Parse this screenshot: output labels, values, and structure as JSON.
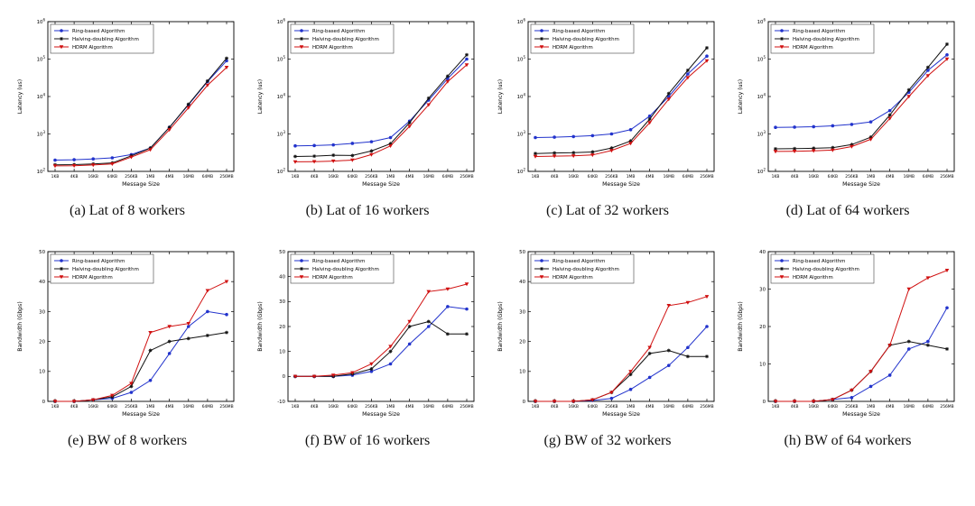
{
  "page": {
    "background": "#ffffff"
  },
  "legend_labels": [
    "Ring-based Algorithm",
    "Halving-doubling Algorithm",
    "HDRM Algorithm"
  ],
  "colors": {
    "ring": "#2233cc",
    "halving": "#111111",
    "hdrm": "#d01010"
  },
  "chart_data": [
    {
      "id": "a",
      "caption": "(a) Lat of 8 workers",
      "type": "line",
      "yscale": "log",
      "xlabel": "Message Size",
      "ylabel": "Latency (us)",
      "ylim": [
        100,
        1000000
      ],
      "log_ticks": [
        2,
        3,
        4,
        5,
        6
      ],
      "categories": [
        "1KB",
        "4KB",
        "16KB",
        "64KB",
        "256KB",
        "1MB",
        "4MB",
        "16MB",
        "64MB",
        "256MB"
      ],
      "series": [
        {
          "name": "Ring-based Algorithm",
          "color": "#2233cc",
          "marker": "circle",
          "values": [
            200,
            205,
            215,
            230,
            280,
            420,
            1500,
            6000,
            25000,
            90000
          ]
        },
        {
          "name": "Halving-doubling Algorithm",
          "color": "#111111",
          "marker": "asterisk",
          "values": [
            150,
            152,
            158,
            168,
            260,
            420,
            1500,
            6200,
            26000,
            105000
          ]
        },
        {
          "name": "HDRM Algorithm",
          "color": "#d01010",
          "marker": "triangle-down",
          "values": [
            140,
            142,
            148,
            158,
            240,
            380,
            1300,
            5000,
            20000,
            60000
          ]
        }
      ]
    },
    {
      "id": "b",
      "caption": "(b) Lat of 16 workers",
      "type": "line",
      "yscale": "log",
      "xlabel": "Message Size",
      "ylabel": "Latency (us)",
      "ylim": [
        100,
        1000000
      ],
      "log_ticks": [
        2,
        3,
        4,
        5,
        6
      ],
      "categories": [
        "1KB",
        "4KB",
        "16KB",
        "64KB",
        "256KB",
        "1MB",
        "4MB",
        "16MB",
        "64MB",
        "256MB"
      ],
      "series": [
        {
          "name": "Ring-based Algorithm",
          "color": "#2233cc",
          "marker": "circle",
          "values": [
            480,
            490,
            510,
            560,
            620,
            800,
            2200,
            8000,
            30000,
            100000
          ]
        },
        {
          "name": "Halving-doubling Algorithm",
          "color": "#111111",
          "marker": "asterisk",
          "values": [
            250,
            255,
            270,
            265,
            350,
            550,
            2000,
            9000,
            35000,
            130000
          ]
        },
        {
          "name": "HDRM Algorithm",
          "color": "#d01010",
          "marker": "triangle-down",
          "values": [
            180,
            182,
            188,
            200,
            280,
            480,
            1600,
            6000,
            25000,
            70000
          ]
        }
      ]
    },
    {
      "id": "c",
      "caption": "(c) Lat of 32 workers",
      "type": "line",
      "yscale": "log",
      "xlabel": "Message Size",
      "ylabel": "Latency (us)",
      "ylim": [
        100,
        1000000
      ],
      "log_ticks": [
        2,
        3,
        4,
        5,
        6
      ],
      "categories": [
        "1KB",
        "4KB",
        "16KB",
        "64KB",
        "256KB",
        "1MB",
        "4MB",
        "16MB",
        "64MB",
        "256MB"
      ],
      "series": [
        {
          "name": "Ring-based Algorithm",
          "color": "#2233cc",
          "marker": "circle",
          "values": [
            800,
            820,
            850,
            900,
            1000,
            1300,
            3000,
            10000,
            40000,
            120000
          ]
        },
        {
          "name": "Halving-doubling Algorithm",
          "color": "#111111",
          "marker": "asterisk",
          "values": [
            300,
            310,
            315,
            330,
            420,
            650,
            2500,
            12000,
            50000,
            200000
          ]
        },
        {
          "name": "HDRM Algorithm",
          "color": "#d01010",
          "marker": "triangle-down",
          "values": [
            250,
            255,
            260,
            275,
            360,
            560,
            2000,
            8500,
            32000,
            90000
          ]
        }
      ]
    },
    {
      "id": "d",
      "caption": "(d) Lat of 64 workers",
      "type": "line",
      "yscale": "log",
      "xlabel": "Message Size",
      "ylabel": "Latency (us)",
      "ylim": [
        100,
        1000000
      ],
      "log_ticks": [
        2,
        3,
        4,
        5,
        6
      ],
      "categories": [
        "1KB",
        "4KB",
        "16KB",
        "64KB",
        "256KB",
        "1MB",
        "4MB",
        "16MB",
        "64MB",
        "256MB"
      ],
      "series": [
        {
          "name": "Ring-based Algorithm",
          "color": "#2233cc",
          "marker": "circle",
          "values": [
            1500,
            1520,
            1560,
            1650,
            1800,
            2100,
            4200,
            13000,
            50000,
            130000
          ]
        },
        {
          "name": "Halving-doubling Algorithm",
          "color": "#111111",
          "marker": "asterisk",
          "values": [
            400,
            405,
            415,
            430,
            520,
            820,
            3200,
            15000,
            60000,
            250000
          ]
        },
        {
          "name": "HDRM Algorithm",
          "color": "#d01010",
          "marker": "triangle-down",
          "values": [
            340,
            345,
            355,
            370,
            460,
            720,
            2600,
            10000,
            36000,
            100000
          ]
        }
      ]
    },
    {
      "id": "e",
      "caption": "(e) BW of 8 workers",
      "type": "line",
      "yscale": "linear",
      "xlabel": "Message Size",
      "ylabel": "Bandwidth (Gbps)",
      "ylim": [
        0,
        50
      ],
      "yticks": [
        0,
        10,
        20,
        30,
        40,
        50
      ],
      "categories": [
        "1KB",
        "4KB",
        "16KB",
        "64KB",
        "256KB",
        "1MB",
        "4MB",
        "16MB",
        "64MB",
        "256MB"
      ],
      "series": [
        {
          "name": "Ring-based Algorithm",
          "color": "#2233cc",
          "marker": "circle",
          "values": [
            0,
            0,
            0.5,
            1,
            3,
            7,
            16,
            25,
            30,
            29
          ]
        },
        {
          "name": "Halving-doubling Algorithm",
          "color": "#111111",
          "marker": "asterisk",
          "values": [
            0,
            0,
            0.5,
            1.5,
            5,
            17,
            20,
            21,
            22,
            23
          ]
        },
        {
          "name": "HDRM Algorithm",
          "color": "#d01010",
          "marker": "triangle-down",
          "values": [
            0,
            0,
            0.5,
            2,
            6,
            23,
            25,
            26,
            37,
            40
          ]
        }
      ]
    },
    {
      "id": "f",
      "caption": "(f) BW of 16 workers",
      "type": "line",
      "yscale": "linear",
      "xlabel": "Message Size",
      "ylabel": "Bandwidth (Gbps)",
      "ylim": [
        -10,
        50
      ],
      "yticks": [
        -10,
        0,
        10,
        20,
        30,
        40,
        50
      ],
      "categories": [
        "1KB",
        "4KB",
        "16KB",
        "64KB",
        "256KB",
        "1MB",
        "4MB",
        "16MB",
        "64MB",
        "256MB"
      ],
      "series": [
        {
          "name": "Ring-based Algorithm",
          "color": "#2233cc",
          "marker": "circle",
          "values": [
            0,
            0,
            0,
            0.5,
            2,
            5,
            13,
            20,
            28,
            27
          ]
        },
        {
          "name": "Halving-doubling Algorithm",
          "color": "#111111",
          "marker": "asterisk",
          "values": [
            0,
            0,
            0,
            1,
            3,
            10,
            20,
            22,
            17,
            17
          ]
        },
        {
          "name": "HDRM Algorithm",
          "color": "#d01010",
          "marker": "triangle-down",
          "values": [
            0,
            0,
            0.5,
            1.5,
            5,
            12,
            22,
            34,
            35,
            37
          ]
        }
      ]
    },
    {
      "id": "g",
      "caption": "(g) BW of 32 workers",
      "type": "line",
      "yscale": "linear",
      "xlabel": "Message Size",
      "ylabel": "Bandwidth (Gbps)",
      "ylim": [
        0,
        50
      ],
      "yticks": [
        0,
        10,
        20,
        30,
        40,
        50
      ],
      "categories": [
        "1KB",
        "4KB",
        "16KB",
        "64KB",
        "256KB",
        "1MB",
        "4MB",
        "16MB",
        "64MB",
        "256MB"
      ],
      "series": [
        {
          "name": "Ring-based Algorithm",
          "color": "#2233cc",
          "marker": "circle",
          "values": [
            0,
            0,
            0,
            0.3,
            1,
            4,
            8,
            12,
            18,
            25
          ]
        },
        {
          "name": "Halving-doubling Algorithm",
          "color": "#111111",
          "marker": "asterisk",
          "values": [
            0,
            0,
            0,
            0.5,
            3,
            9,
            16,
            17,
            15,
            15
          ]
        },
        {
          "name": "HDRM Algorithm",
          "color": "#d01010",
          "marker": "triangle-down",
          "values": [
            0,
            0,
            0,
            0.5,
            3,
            10,
            18,
            32,
            33,
            35
          ]
        }
      ]
    },
    {
      "id": "h",
      "caption": "(h) BW of 64 workers",
      "type": "line",
      "yscale": "linear",
      "xlabel": "Message Size",
      "ylabel": "Bandwidth (Gbps)",
      "ylim": [
        0,
        40
      ],
      "yticks": [
        0,
        10,
        20,
        30,
        40
      ],
      "categories": [
        "1KB",
        "4KB",
        "16KB",
        "64KB",
        "256KB",
        "1MB",
        "4MB",
        "16MB",
        "64MB",
        "256MB"
      ],
      "series": [
        {
          "name": "Ring-based Algorithm",
          "color": "#2233cc",
          "marker": "circle",
          "values": [
            0,
            0,
            0,
            0.5,
            1,
            4,
            7,
            14,
            16,
            25
          ]
        },
        {
          "name": "Halving-doubling Algorithm",
          "color": "#111111",
          "marker": "asterisk",
          "values": [
            0,
            0,
            0,
            0.5,
            3,
            8,
            15,
            16,
            15,
            14
          ]
        },
        {
          "name": "HDRM Algorithm",
          "color": "#d01010",
          "marker": "triangle-down",
          "values": [
            0,
            0,
            0,
            0.5,
            3,
            8,
            15,
            30,
            33,
            35
          ]
        }
      ]
    }
  ]
}
